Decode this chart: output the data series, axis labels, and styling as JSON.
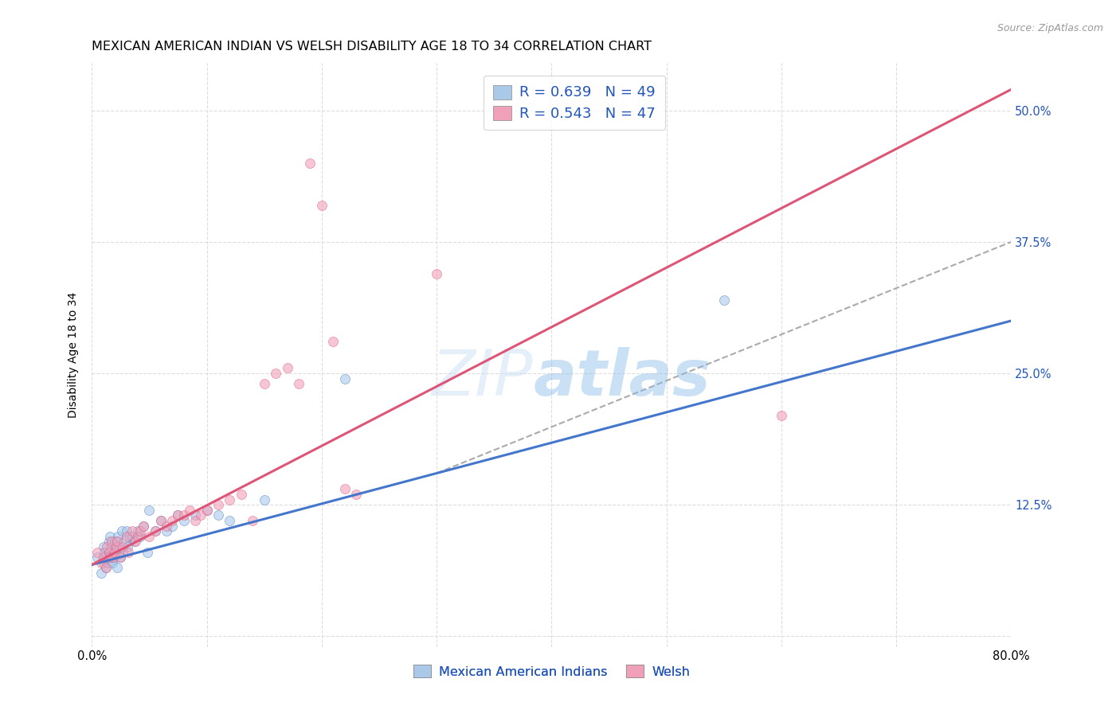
{
  "title": "MEXICAN AMERICAN INDIAN VS WELSH DISABILITY AGE 18 TO 34 CORRELATION CHART",
  "source": "Source: ZipAtlas.com",
  "ylabel": "Disability Age 18 to 34",
  "xmin": 0.0,
  "xmax": 0.8,
  "ymin": -0.01,
  "ymax": 0.545,
  "legend_R_color": "#2255bb",
  "blue_scatter_color": "#aac8e8",
  "pink_scatter_color": "#f0a0b8",
  "blue_line_color": "#4477cc",
  "pink_line_color": "#dd5577",
  "dashed_line_color": "#aaaaaa",
  "blue_x": [
    0.005,
    0.008,
    0.01,
    0.01,
    0.011,
    0.012,
    0.013,
    0.014,
    0.015,
    0.015,
    0.016,
    0.016,
    0.017,
    0.018,
    0.019,
    0.02,
    0.02,
    0.021,
    0.022,
    0.022,
    0.023,
    0.024,
    0.025,
    0.026,
    0.027,
    0.028,
    0.03,
    0.031,
    0.033,
    0.035,
    0.037,
    0.04,
    0.042,
    0.045,
    0.048,
    0.05,
    0.055,
    0.06,
    0.065,
    0.07,
    0.075,
    0.08,
    0.09,
    0.1,
    0.11,
    0.12,
    0.15,
    0.22,
    0.55
  ],
  "blue_y": [
    0.075,
    0.06,
    0.07,
    0.085,
    0.08,
    0.065,
    0.075,
    0.07,
    0.08,
    0.09,
    0.075,
    0.095,
    0.085,
    0.07,
    0.08,
    0.075,
    0.09,
    0.08,
    0.065,
    0.09,
    0.095,
    0.085,
    0.075,
    0.1,
    0.08,
    0.09,
    0.1,
    0.085,
    0.095,
    0.095,
    0.09,
    0.1,
    0.095,
    0.105,
    0.08,
    0.12,
    0.1,
    0.11,
    0.1,
    0.105,
    0.115,
    0.11,
    0.115,
    0.12,
    0.115,
    0.11,
    0.13,
    0.245,
    0.32
  ],
  "pink_x": [
    0.005,
    0.008,
    0.01,
    0.012,
    0.013,
    0.015,
    0.016,
    0.017,
    0.018,
    0.02,
    0.021,
    0.022,
    0.025,
    0.027,
    0.03,
    0.032,
    0.035,
    0.038,
    0.04,
    0.042,
    0.045,
    0.05,
    0.055,
    0.06,
    0.065,
    0.07,
    0.075,
    0.08,
    0.085,
    0.09,
    0.095,
    0.1,
    0.11,
    0.12,
    0.13,
    0.14,
    0.15,
    0.16,
    0.17,
    0.18,
    0.19,
    0.2,
    0.21,
    0.22,
    0.23,
    0.6,
    0.3
  ],
  "pink_y": [
    0.08,
    0.07,
    0.075,
    0.065,
    0.085,
    0.08,
    0.075,
    0.09,
    0.075,
    0.08,
    0.085,
    0.09,
    0.075,
    0.085,
    0.095,
    0.08,
    0.1,
    0.09,
    0.095,
    0.1,
    0.105,
    0.095,
    0.1,
    0.11,
    0.105,
    0.11,
    0.115,
    0.115,
    0.12,
    0.11,
    0.115,
    0.12,
    0.125,
    0.13,
    0.135,
    0.11,
    0.24,
    0.25,
    0.255,
    0.24,
    0.45,
    0.41,
    0.28,
    0.14,
    0.135,
    0.21,
    0.345
  ],
  "blue_line_x": [
    0.0,
    0.8
  ],
  "blue_line_y": [
    0.068,
    0.3
  ],
  "pink_line_x": [
    0.0,
    0.8
  ],
  "pink_line_y": [
    0.068,
    0.52
  ],
  "dashed_line_x": [
    0.3,
    0.8
  ],
  "dashed_line_y": [
    0.155,
    0.375
  ],
  "scatter_size": 75,
  "scatter_alpha": 0.6,
  "grid_color": "#dddddd",
  "bg_color": "#ffffff",
  "title_fontsize": 11.5,
  "axis_label_fontsize": 10,
  "tick_fontsize": 10.5
}
